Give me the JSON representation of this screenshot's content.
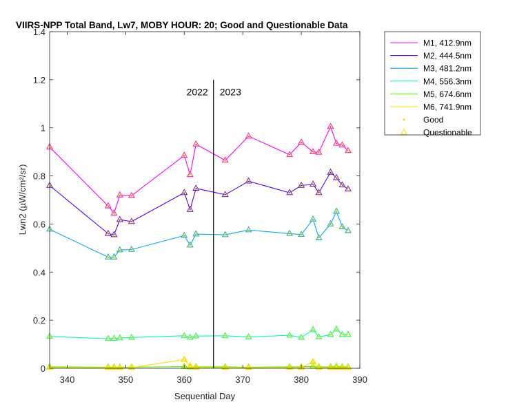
{
  "chart_data": {
    "type": "line",
    "title": "VIIRS-NPP Total Band, Lw7, MOBY HOUR: 20;  Good and Questionable Data",
    "xlabel": "Sequential Day",
    "ylabel": "Lwn2 (µW/cm²/sr)",
    "xlim": [
      337,
      390
    ],
    "ylim": [
      0,
      1.4
    ],
    "xticks": [
      340,
      350,
      360,
      370,
      380,
      390
    ],
    "yticks": [
      0,
      0.2,
      0.4,
      0.6,
      0.8,
      1,
      1.2,
      1.4
    ],
    "xtick_labels": [
      "340",
      "350",
      "360",
      "370",
      "380",
      "390"
    ],
    "ytick_labels": [
      "0",
      "0.2",
      "0.4",
      "0.6",
      "0.8",
      "1",
      "1.2",
      "1.4"
    ],
    "grid": false,
    "legend_position": "outside-top-right",
    "year_divider": {
      "x": 365,
      "y_top": 1.2,
      "left_label": "2022",
      "right_label": "2023"
    },
    "x": [
      337,
      347,
      348,
      349,
      351,
      360,
      361,
      362,
      367,
      371,
      378,
      380,
      382,
      383,
      385,
      386,
      387,
      388
    ],
    "series": [
      {
        "name": "M1, 412.9nm",
        "color": "#ff00ff",
        "values": [
          0.92,
          0.675,
          0.645,
          0.72,
          0.718,
          0.885,
          0.805,
          0.932,
          0.865,
          0.965,
          0.888,
          0.94,
          0.9,
          0.898,
          1.005,
          0.935,
          0.928,
          0.905
        ]
      },
      {
        "name": "M2, 444.5nm",
        "color": "#5500ff",
        "values": [
          0.76,
          0.56,
          0.555,
          0.618,
          0.61,
          0.73,
          0.66,
          0.748,
          0.722,
          0.778,
          0.73,
          0.76,
          0.765,
          0.73,
          0.815,
          0.792,
          0.762,
          0.745
        ]
      },
      {
        "name": "M3, 481.2nm",
        "color": "#00aaff",
        "values": [
          0.578,
          0.462,
          0.462,
          0.492,
          0.494,
          0.552,
          0.512,
          0.558,
          0.555,
          0.575,
          0.56,
          0.556,
          0.62,
          0.542,
          0.6,
          0.652,
          0.588,
          0.572
        ]
      },
      {
        "name": "M4, 556.3nm",
        "color": "#00ffaa",
        "values": [
          0.132,
          0.123,
          0.124,
          0.126,
          0.128,
          0.135,
          0.128,
          0.134,
          0.135,
          0.13,
          0.137,
          0.128,
          0.16,
          0.13,
          0.14,
          0.162,
          0.14,
          0.14
        ]
      },
      {
        "name": "M5, 674.6nm",
        "color": "#55ff00",
        "values": [
          0.006,
          0.005,
          0.005,
          0.005,
          0.005,
          0.007,
          0.005,
          0.006,
          0.006,
          0.005,
          0.006,
          0.006,
          0.008,
          0.006,
          0.006,
          0.008,
          0.006,
          0.006
        ]
      },
      {
        "name": "M6, 741.9nm",
        "color": "#ffdd00",
        "values": [
          0.003,
          0.003,
          0.003,
          0.003,
          0.003,
          0.036,
          0.01,
          0.003,
          0.003,
          0.003,
          0.003,
          0.003,
          0.027,
          0.003,
          0.003,
          0.003,
          0.003,
          0.003
        ]
      }
    ],
    "marker_legend": [
      {
        "name": "Good",
        "marker": "dot"
      },
      {
        "name": "Questionable",
        "marker": "triangle"
      }
    ],
    "marker_color": "#ffdd00",
    "all_points_questionable": true
  }
}
